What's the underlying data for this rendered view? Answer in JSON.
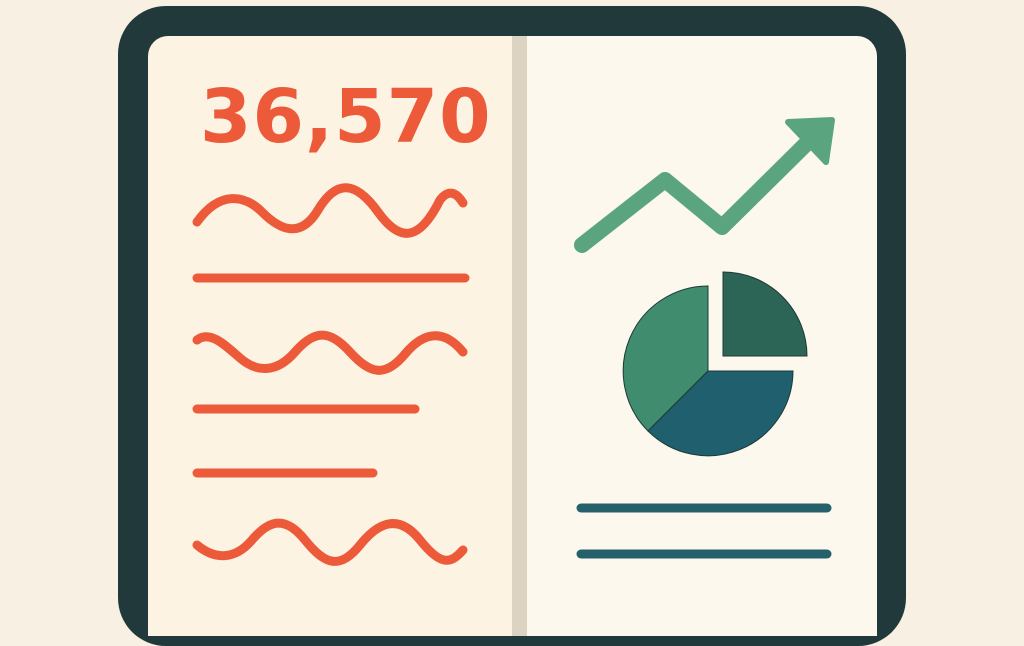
{
  "metric": {
    "value": "36,570"
  },
  "colors": {
    "background": "#f8f0e2",
    "frame": "#22393b",
    "accent_red": "#ec5a3a",
    "trend_green": "#5aa57f",
    "pie_light": "#3f8c6f",
    "pie_dark": "#2c6556",
    "pie_teal": "#1f5f6e",
    "line_teal": "#25606b"
  },
  "icons": [
    "trend-up-arrow-icon",
    "pie-chart-icon"
  ]
}
